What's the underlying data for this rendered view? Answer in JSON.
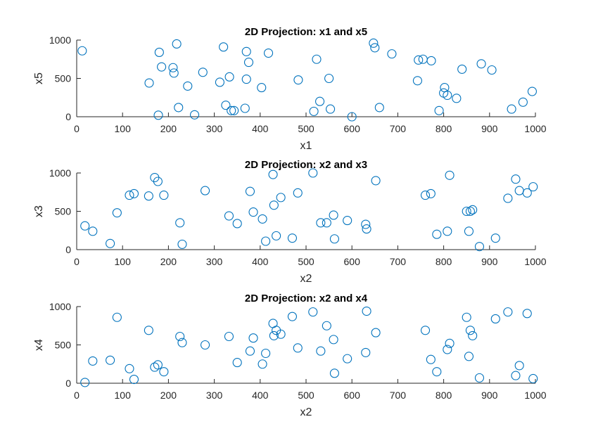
{
  "colors": {
    "marker": "#0072BD",
    "axis": "#262626",
    "background": "#ffffff"
  },
  "chart_data": [
    {
      "type": "scatter",
      "title": "2D Projection: x1 and x5",
      "xlabel": "x1",
      "ylabel": "x5",
      "xlim": [
        0,
        1000
      ],
      "ylim": [
        0,
        1000
      ],
      "xticks": [
        "0",
        "100",
        "200",
        "300",
        "400",
        "500",
        "600",
        "700",
        "800",
        "900",
        "1000"
      ],
      "yticks": [
        "0",
        "500",
        "1000"
      ],
      "grid": false,
      "series": [
        {
          "x": [
            12,
            158,
            180,
            178,
            185,
            210,
            212,
            218,
            222,
            242,
            257,
            275,
            312,
            320,
            325,
            333,
            337,
            343,
            367,
            370,
            370,
            375,
            403,
            418,
            483,
            517,
            523,
            530,
            550,
            553,
            600,
            647,
            650,
            660,
            687,
            743,
            745,
            755,
            773,
            790,
            800,
            802,
            808,
            828,
            840,
            882,
            905,
            948,
            973,
            993
          ],
          "y": [
            860,
            440,
            840,
            20,
            650,
            640,
            570,
            950,
            120,
            400,
            25,
            580,
            450,
            910,
            150,
            520,
            80,
            80,
            110,
            490,
            850,
            710,
            380,
            830,
            480,
            70,
            750,
            200,
            500,
            100,
            0,
            960,
            900,
            120,
            820,
            470,
            740,
            750,
            730,
            80,
            310,
            380,
            280,
            240,
            620,
            690,
            610,
            100,
            190,
            330
          ]
        }
      ]
    },
    {
      "type": "scatter",
      "title": "2D Projection: x2 and x3",
      "xlabel": "x2",
      "ylabel": "x3",
      "xlim": [
        0,
        1000
      ],
      "ylim": [
        0,
        1000
      ],
      "xticks": [
        "0",
        "100",
        "200",
        "300",
        "400",
        "500",
        "600",
        "700",
        "800",
        "900",
        "1000"
      ],
      "yticks": [
        "0",
        "500",
        "1000"
      ],
      "grid": false,
      "series": [
        {
          "x": [
            18,
            35,
            73,
            88,
            115,
            125,
            157,
            170,
            177,
            190,
            225,
            230,
            280,
            332,
            350,
            378,
            385,
            405,
            412,
            428,
            430,
            435,
            445,
            470,
            482,
            515,
            532,
            545,
            560,
            562,
            590,
            630,
            632,
            652,
            760,
            772,
            785,
            808,
            813,
            850,
            855,
            858,
            863,
            878,
            913,
            940,
            957,
            965,
            982,
            995
          ],
          "y": [
            310,
            240,
            80,
            480,
            710,
            730,
            700,
            940,
            890,
            710,
            350,
            70,
            770,
            440,
            340,
            760,
            490,
            400,
            110,
            980,
            580,
            180,
            680,
            150,
            740,
            1000,
            350,
            350,
            450,
            140,
            380,
            330,
            270,
            900,
            710,
            730,
            200,
            240,
            970,
            500,
            240,
            500,
            520,
            40,
            150,
            670,
            920,
            770,
            740,
            820
          ]
        }
      ]
    },
    {
      "type": "scatter",
      "title": "2D Projection: x2 and x4",
      "xlabel": "x2",
      "ylabel": "x4",
      "xlim": [
        0,
        1000
      ],
      "ylim": [
        0,
        1000
      ],
      "xticks": [
        "0",
        "100",
        "200",
        "300",
        "400",
        "500",
        "600",
        "700",
        "800",
        "900",
        "1000"
      ],
      "yticks": [
        "0",
        "500",
        "1000"
      ],
      "grid": false,
      "series": [
        {
          "x": [
            18,
            35,
            73,
            88,
            115,
            125,
            157,
            170,
            177,
            190,
            225,
            230,
            280,
            332,
            350,
            378,
            385,
            405,
            412,
            428,
            430,
            435,
            445,
            470,
            482,
            515,
            532,
            545,
            560,
            562,
            590,
            630,
            632,
            652,
            760,
            772,
            785,
            808,
            813,
            850,
            855,
            858,
            863,
            878,
            913,
            940,
            957,
            965,
            982,
            995
          ],
          "y": [
            10,
            290,
            300,
            860,
            190,
            50,
            690,
            210,
            240,
            150,
            610,
            530,
            500,
            610,
            270,
            420,
            590,
            250,
            390,
            780,
            620,
            690,
            640,
            870,
            460,
            930,
            420,
            750,
            570,
            130,
            320,
            400,
            940,
            660,
            690,
            310,
            150,
            440,
            520,
            860,
            350,
            690,
            620,
            70,
            840,
            930,
            100,
            230,
            910,
            60
          ]
        }
      ]
    }
  ]
}
